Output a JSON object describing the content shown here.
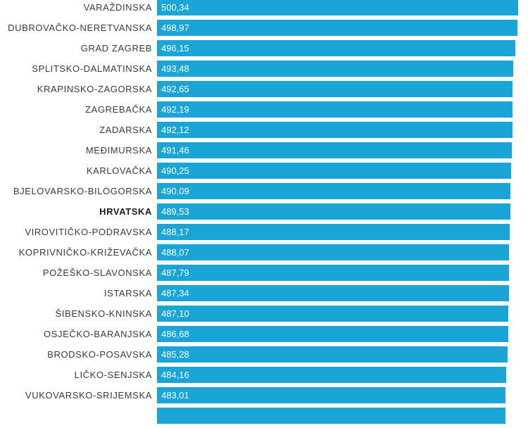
{
  "chart_data": {
    "type": "bar",
    "orientation": "horizontal",
    "bar_color": "#1ba5d6",
    "highlight_category": "HRVATSKA",
    "categories": [
      "VARAŽDINSKA",
      "DUBROVAČKO-NERETVANSKA",
      "GRAD ZAGREB",
      "SPLITSKO-DALMATINSKA",
      "KRAPINSKO-ZAGORSKA",
      "ZAGREBAČKA",
      "ZADARSKA",
      "MEĐIMURSKA",
      "KARLOVAČKA",
      "BJELOVARSKO-BILOGORSKA",
      "HRVATSKA",
      "VIROVITIČKO-PODRAVSKA",
      "KOPRIVNIČKO-KRIŽEVAČKA",
      "POŽEŠKO-SLAVONSKA",
      "ISTARSKA",
      "ŠIBENSKO-KNINSKA",
      "OSJEČKO-BARANJSKA",
      "BRODSKO-POSAVSKA",
      "LIČKO-SENJSKA",
      "VUKOVARSKO-SRIJEMSKA",
      ""
    ],
    "values": [
      500.34,
      498.97,
      496.15,
      493.48,
      492.65,
      492.19,
      492.12,
      491.46,
      490.25,
      490.09,
      489.53,
      488.17,
      488.07,
      487.79,
      487.34,
      487.1,
      486.68,
      485.28,
      484.16,
      483.01,
      482.5
    ],
    "value_labels": [
      "500,34",
      "498,97",
      "496,15",
      "493,48",
      "492,65",
      "492,19",
      "492,12",
      "491,46",
      "490,25",
      "490,09",
      "489,53",
      "488,17",
      "488,07",
      "487,79",
      "487,34",
      "487,10",
      "486,68",
      "485,28",
      "484,16",
      "483,01",
      ""
    ],
    "xlim": [
      0,
      500.34
    ],
    "grid": false,
    "legend": "none"
  }
}
